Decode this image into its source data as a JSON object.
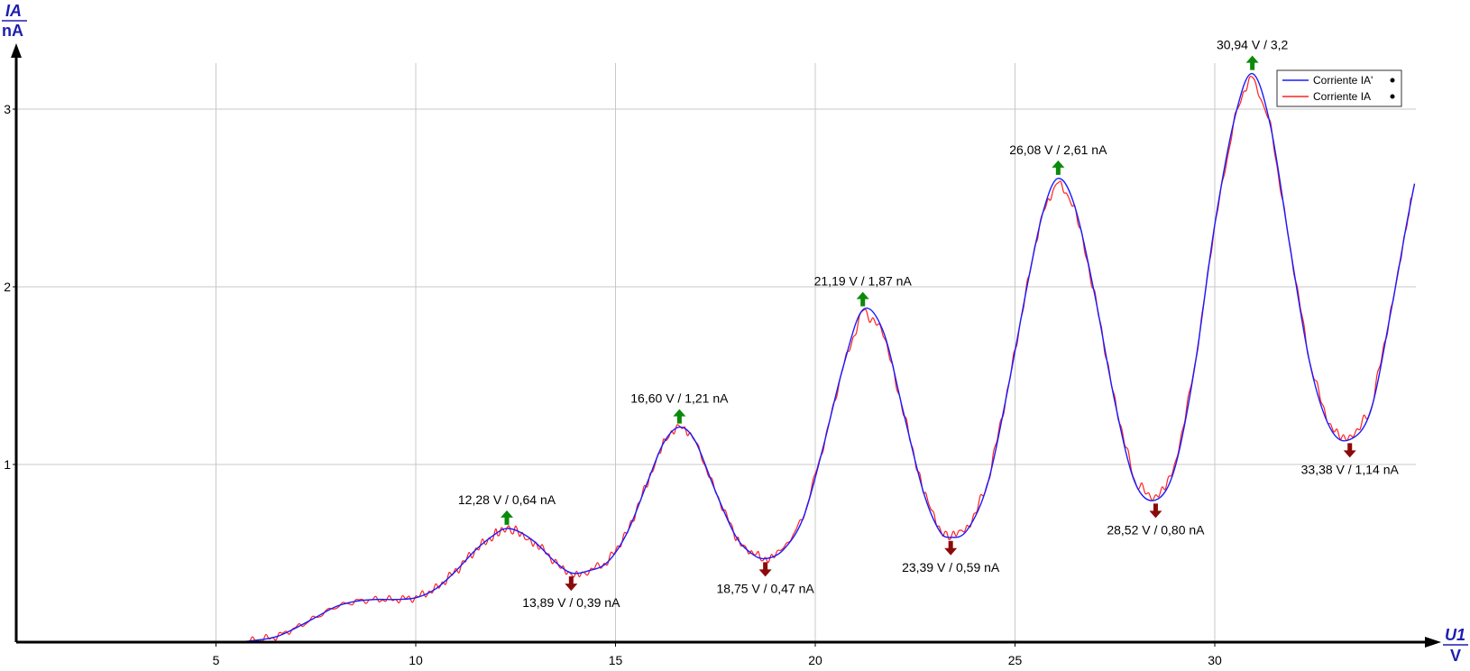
{
  "chart_data": {
    "type": "line",
    "x_axis": {
      "label": "U1",
      "unit": "V",
      "range": [
        0,
        35
      ],
      "ticks": [
        5,
        10,
        15,
        20,
        25,
        30
      ]
    },
    "y_axis": {
      "label": "IA",
      "unit": "nA",
      "range": [
        0,
        3.2
      ],
      "ticks": [
        1,
        2,
        3
      ]
    },
    "grid": true,
    "legend_position": "top-right",
    "series": [
      {
        "name": "Corriente IA'",
        "color": "#1a1aff",
        "x": [
          0,
          1,
          2,
          3,
          4,
          5,
          5.5,
          6,
          6.5,
          7,
          7.5,
          8,
          8.5,
          9,
          9.5,
          10,
          10.5,
          11,
          11.5,
          12,
          12.28,
          12.6,
          13,
          13.5,
          13.89,
          14.3,
          14.8,
          15.3,
          15.8,
          16.2,
          16.6,
          17,
          17.5,
          18,
          18.4,
          18.75,
          19.2,
          19.7,
          20.2,
          20.7,
          21.19,
          21.7,
          22.2,
          22.7,
          23.1,
          23.39,
          23.8,
          24.3,
          24.8,
          25.3,
          25.7,
          26.08,
          26.5,
          27,
          27.5,
          28,
          28.52,
          29,
          29.5,
          30,
          30.5,
          30.94,
          31.4,
          31.9,
          32.4,
          32.9,
          33.38,
          33.9,
          34.4,
          34.8,
          35
        ],
        "y": [
          0,
          0,
          0,
          0,
          0,
          0,
          0,
          0.01,
          0.03,
          0.08,
          0.14,
          0.2,
          0.23,
          0.24,
          0.24,
          0.25,
          0.3,
          0.4,
          0.52,
          0.61,
          0.64,
          0.62,
          0.56,
          0.45,
          0.39,
          0.4,
          0.45,
          0.62,
          0.9,
          1.12,
          1.21,
          1.13,
          0.85,
          0.6,
          0.5,
          0.47,
          0.52,
          0.7,
          1.1,
          1.55,
          1.87,
          1.75,
          1.3,
          0.85,
          0.63,
          0.59,
          0.63,
          0.88,
          1.4,
          2.0,
          2.42,
          2.61,
          2.45,
          1.95,
          1.35,
          0.9,
          0.8,
          0.98,
          1.55,
          2.35,
          2.95,
          3.2,
          2.9,
          2.2,
          1.55,
          1.2,
          1.14,
          1.3,
          1.85,
          2.35,
          2.58
        ]
      },
      {
        "name": "Corriente IA",
        "color": "#ff2020"
      }
    ],
    "annotations": [
      {
        "type": "max",
        "x": 12.28,
        "y": 0.64,
        "text": "12,28 V / 0,64 nA"
      },
      {
        "type": "min",
        "x": 13.89,
        "y": 0.39,
        "text": "13,89 V / 0,39 nA"
      },
      {
        "type": "max",
        "x": 16.6,
        "y": 1.21,
        "text": "16,60 V / 1,21 nA"
      },
      {
        "type": "min",
        "x": 18.75,
        "y": 0.47,
        "text": "18,75 V / 0,47 nA"
      },
      {
        "type": "max",
        "x": 21.19,
        "y": 1.87,
        "text": "21,19 V / 1,87 nA"
      },
      {
        "type": "min",
        "x": 23.39,
        "y": 0.59,
        "text": "23,39 V / 0,59 nA"
      },
      {
        "type": "max",
        "x": 26.08,
        "y": 2.61,
        "text": "26,08 V / 2,61 nA"
      },
      {
        "type": "min",
        "x": 28.52,
        "y": 0.8,
        "text": "28,52 V / 0,80 nA"
      },
      {
        "type": "max",
        "x": 30.94,
        "y": 3.2,
        "text": "30,94 V / 3,2"
      },
      {
        "type": "min",
        "x": 33.38,
        "y": 1.14,
        "text": "33,38 V / 1,14 nA"
      }
    ]
  }
}
